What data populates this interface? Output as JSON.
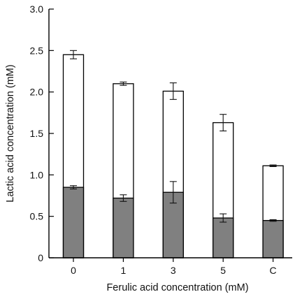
{
  "chart_data": {
    "type": "bar",
    "stacked_overlay": true,
    "categories": [
      "0",
      "1",
      "3",
      "5",
      "C"
    ],
    "series": [
      {
        "role": "total",
        "values": [
          2.45,
          2.1,
          2.01,
          1.63,
          1.11
        ],
        "error": [
          0.05,
          0.02,
          0.1,
          0.1,
          0.01
        ],
        "fill": "#ffffff"
      },
      {
        "role": "lower",
        "values": [
          0.85,
          0.72,
          0.79,
          0.48,
          0.45
        ],
        "error": [
          0.02,
          0.04,
          0.13,
          0.05,
          0.01
        ],
        "fill": "#808080"
      }
    ],
    "xlabel": "Ferulic acid concentration (mM)",
    "ylabel": "Lactic acid concentration (mM)",
    "ylim": [
      0,
      3.0
    ],
    "yticks": [
      "0",
      "0.5",
      "1.0",
      "1.5",
      "2.0",
      "2.5",
      "3.0"
    ],
    "grid": false
  },
  "colors": {
    "axis": "#000000",
    "bar_lower": "#808080",
    "bar_total": "#ffffff"
  }
}
